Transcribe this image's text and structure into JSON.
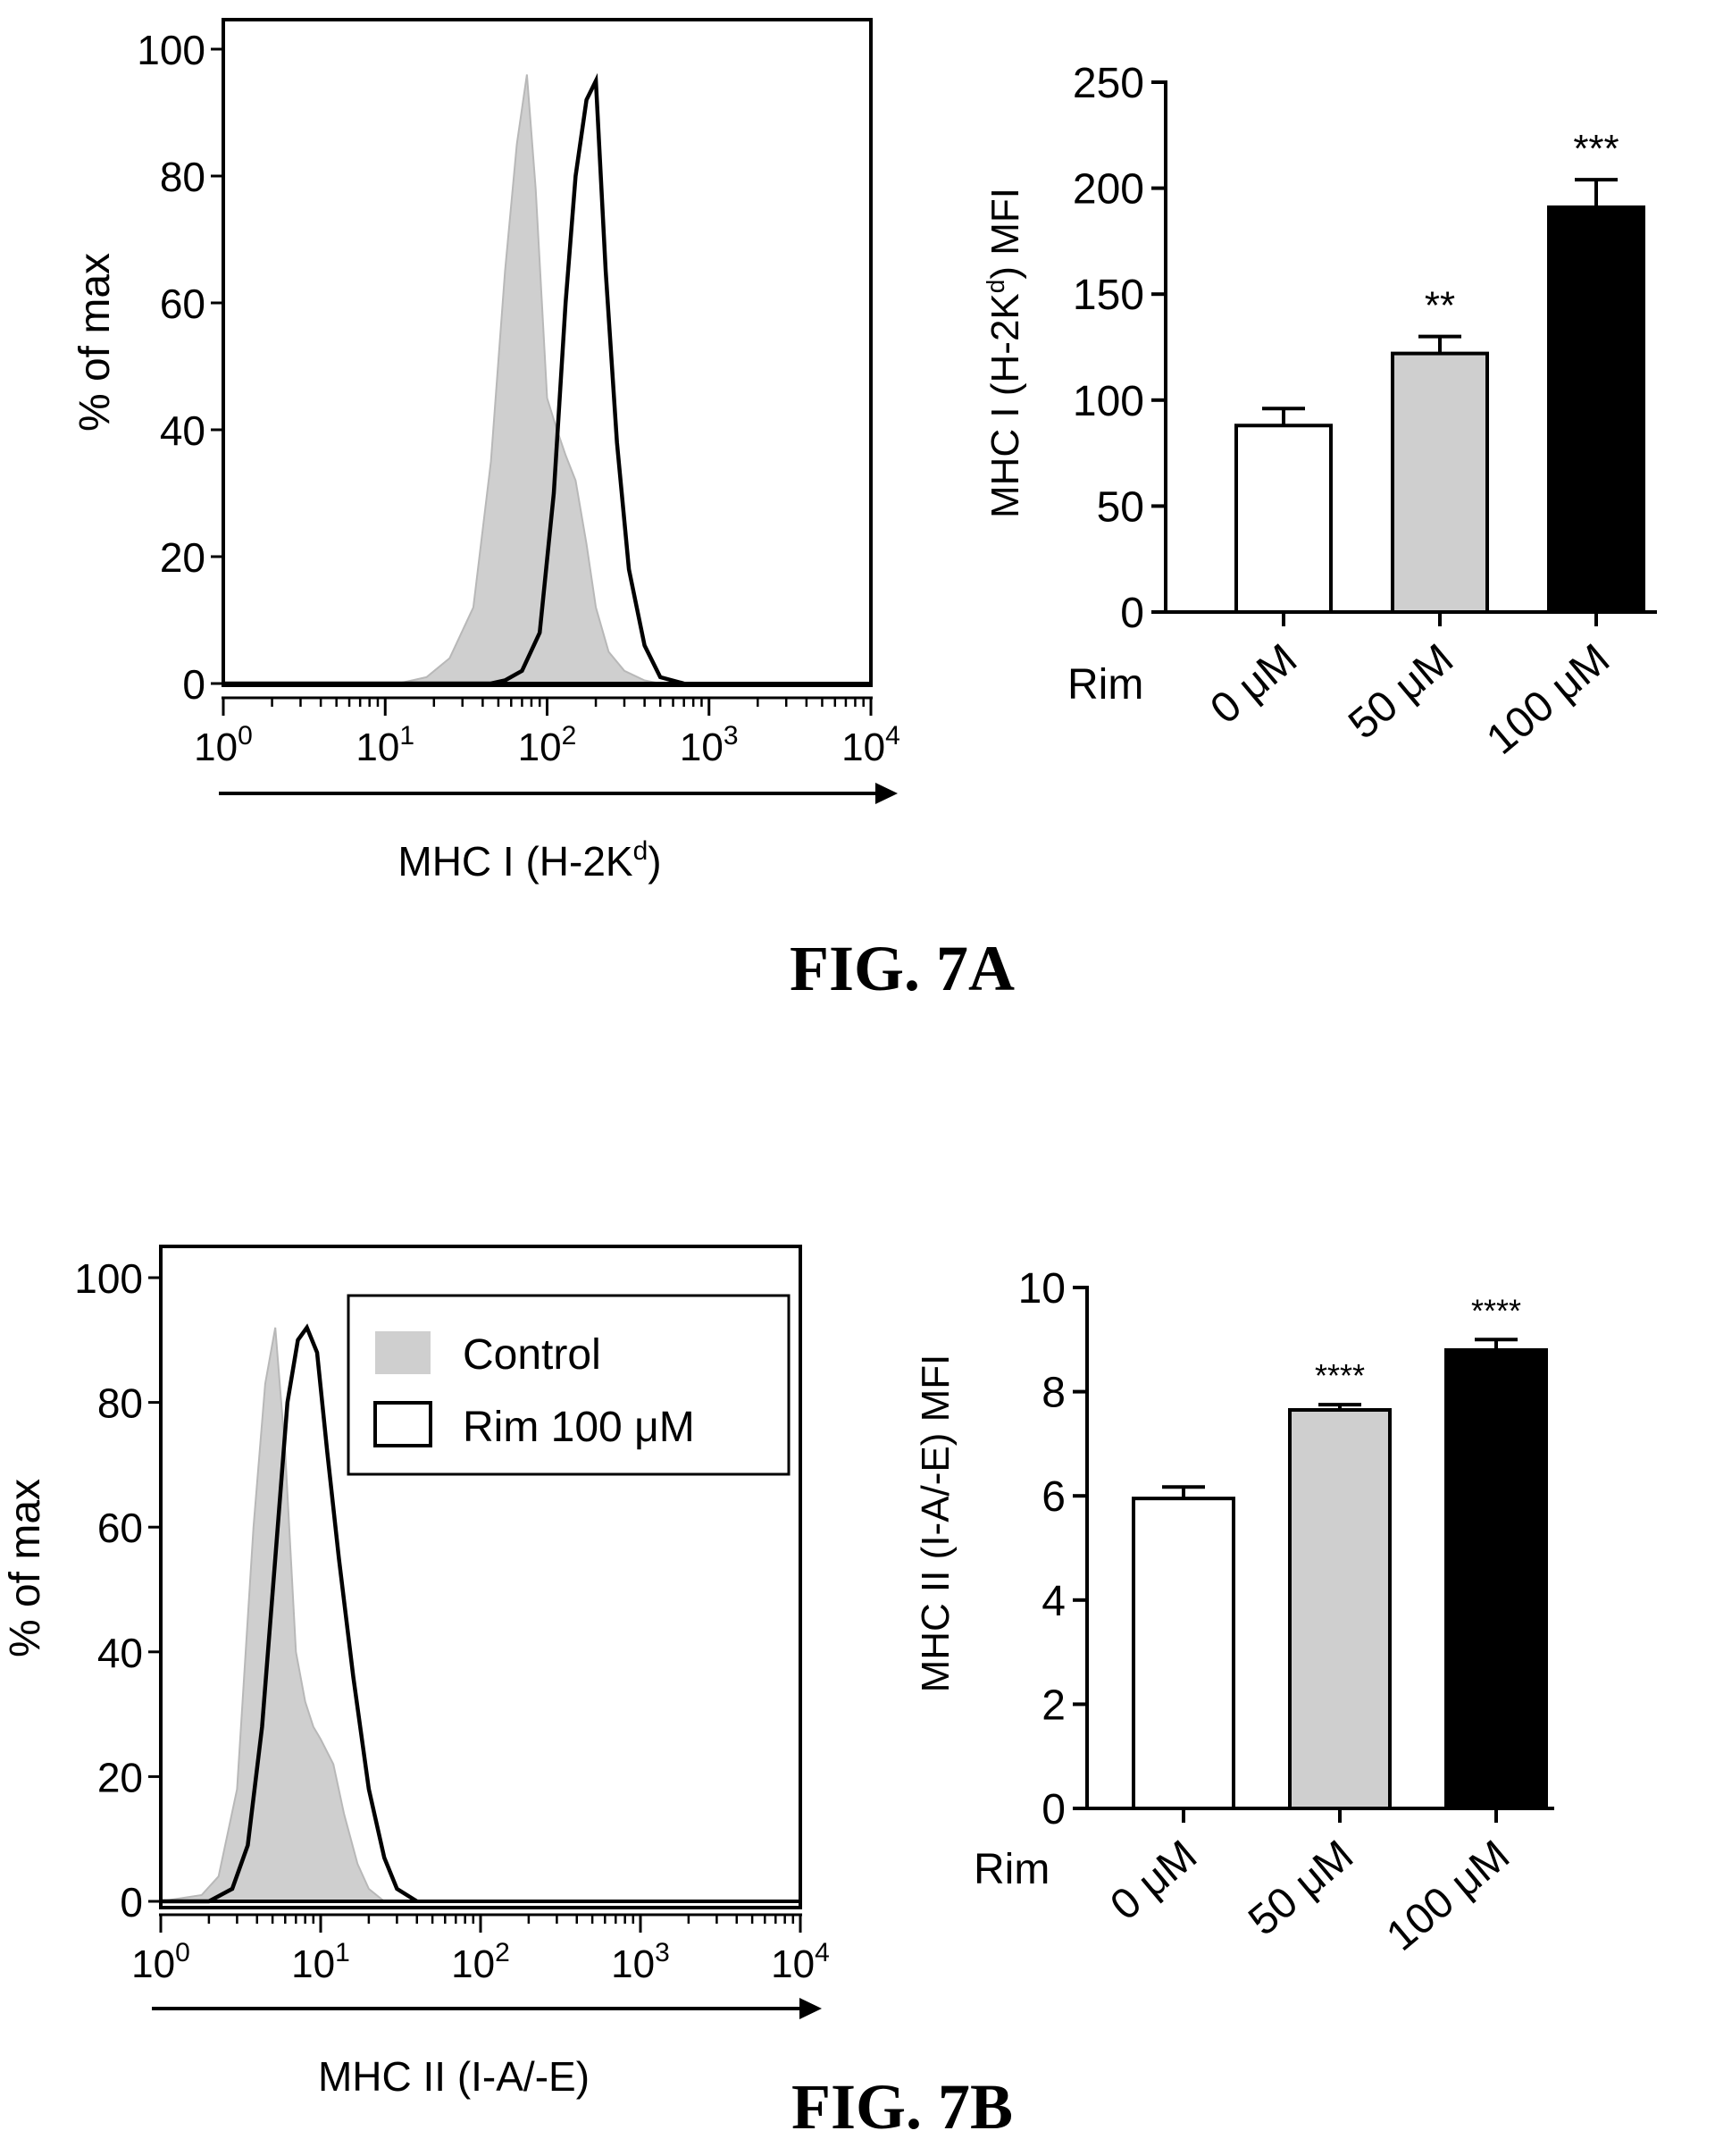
{
  "figures": [
    {
      "label": "FIG. 7A",
      "histogram": {
        "ylabel": "% of max",
        "xlabel": "MHC I (H-2K",
        "xlabel_sup": "d",
        "xlabel_end": ")"
      },
      "bar_chart": {
        "ylabel": "MHC I (H-2K",
        "ylabel_sup": "d",
        "ylabel_end": ") MFI",
        "row_label": "Rim"
      }
    },
    {
      "label": "FIG. 7B",
      "histogram": {
        "ylabel": "% of max",
        "xlabel": "MHC II (I-A/-E)",
        "legend": [
          {
            "label": "Control"
          },
          {
            "label": "Rim 100 μM"
          }
        ]
      },
      "bar_chart": {
        "ylabel": "MHC II (I-A/-E) MFI",
        "row_label": "Rim"
      }
    }
  ],
  "colors": {
    "control_fill": "#cfcfcf",
    "rim_line": "#000000",
    "bar_0": "#ffffff",
    "bar_50": "#cfcfcf",
    "bar_100": "#000000"
  },
  "chart_data": [
    {
      "type": "area",
      "x_scale": "log",
      "xlim": [
        1,
        10000
      ],
      "ylim": [
        0,
        100
      ],
      "x_ticks": [
        1,
        10,
        100,
        1000,
        10000
      ],
      "y_ticks": [
        0,
        20,
        40,
        60,
        80,
        100
      ],
      "xlabel": "MHC I (H-2Kd)",
      "ylabel": "% of max",
      "series": [
        {
          "x": [
            1,
            12,
            18,
            25,
            35,
            45,
            55,
            65,
            75,
            85,
            100,
            115,
            130,
            150,
            175,
            200,
            240,
            300,
            400,
            500
          ],
          "y": [
            0,
            0,
            1,
            4,
            12,
            35,
            65,
            85,
            96,
            78,
            45,
            40,
            36,
            32,
            22,
            12,
            5,
            2,
            0.5,
            0
          ]
        },
        {
          "x": [
            1,
            45,
            55,
            70,
            90,
            110,
            130,
            150,
            175,
            200,
            230,
            270,
            320,
            400,
            500,
            700
          ],
          "y": [
            0,
            0,
            0.5,
            2,
            8,
            30,
            60,
            80,
            92,
            95,
            65,
            38,
            18,
            6,
            1,
            0
          ]
        }
      ]
    },
    {
      "type": "bar",
      "categories": [
        "0 μM",
        "50 μM",
        "100 μM"
      ],
      "values": [
        88,
        122,
        191
      ],
      "errors": [
        8,
        8,
        13
      ],
      "annotations": [
        "",
        "**",
        "***"
      ],
      "ylim": [
        0,
        250
      ],
      "y_ticks": [
        0,
        50,
        100,
        150,
        200,
        250
      ],
      "ylabel": "MHC I (H-2Kd) MFI"
    },
    {
      "type": "area",
      "x_scale": "log",
      "xlim": [
        1,
        10000
      ],
      "ylim": [
        0,
        100
      ],
      "x_ticks": [
        1,
        10,
        100,
        1000,
        10000
      ],
      "y_ticks": [
        0,
        20,
        40,
        60,
        80,
        100
      ],
      "xlabel": "MHC II (I-A/-E)",
      "ylabel": "% of max",
      "series": [
        {
          "name": "Control",
          "x": [
            1,
            1.8,
            2.3,
            3,
            3.8,
            4.5,
            5.2,
            6,
            7,
            8,
            9,
            10,
            12,
            14,
            17,
            20,
            25
          ],
          "y": [
            0,
            1,
            4,
            18,
            60,
            83,
            92,
            72,
            40,
            32,
            28,
            26,
            22,
            14,
            6,
            2,
            0
          ]
        },
        {
          "name": "Rim 100 μM",
          "x": [
            1,
            2,
            2.8,
            3.5,
            4.3,
            5.2,
            6.2,
            7.2,
            8.2,
            9.5,
            11,
            13,
            16,
            20,
            25,
            30,
            40
          ],
          "y": [
            0,
            0,
            2,
            9,
            28,
            55,
            80,
            90,
            92,
            88,
            72,
            55,
            36,
            18,
            7,
            2,
            0
          ]
        }
      ]
    },
    {
      "type": "bar",
      "categories": [
        "0 μM",
        "50 μM",
        "100 μM"
      ],
      "values": [
        5.95,
        7.65,
        8.8
      ],
      "errors": [
        0.22,
        0.1,
        0.2
      ],
      "annotations": [
        "",
        "****",
        "****"
      ],
      "ylim": [
        0,
        10
      ],
      "y_ticks": [
        0,
        2,
        4,
        6,
        8,
        10
      ],
      "ylabel": "MHC II (I-A/-E) MFI"
    }
  ]
}
